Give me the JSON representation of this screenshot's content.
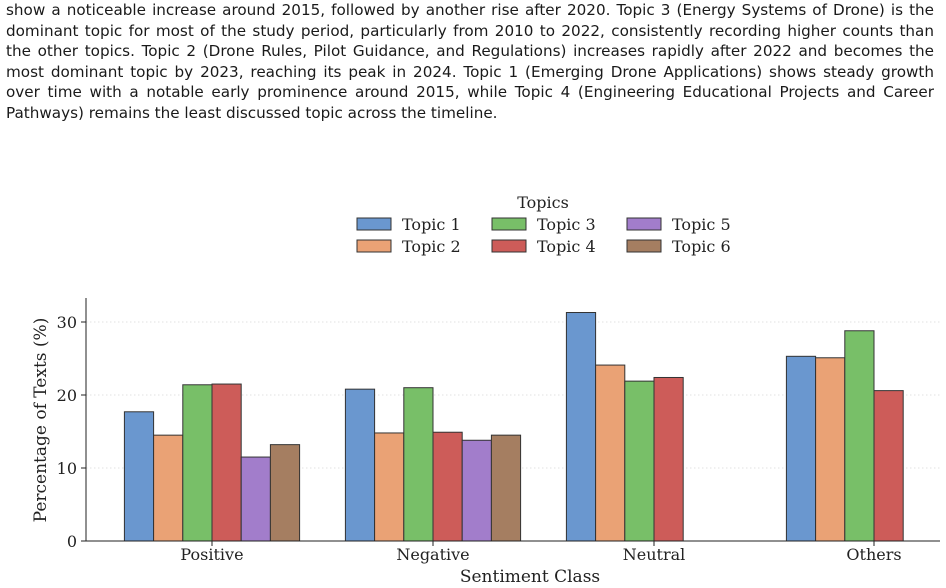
{
  "paragraph": {
    "text": "show a noticeable increase around 2015, followed by another rise after 2020. Topic 3 (Energy Systems of Drone) is the dominant topic for most of the study period, particularly from 2010 to 2022, consistently recording higher counts than the other topics. Topic 2 (Drone Rules, Pilot Guidance, and Regulations) increases rapidly after 2022 and becomes the most dominant topic by 2023, reaching its peak in 2024. Topic 1 (Emerging Drone Applications) shows steady growth over time with a notable early prominence around 2015, while Topic 4 (Engineering Educational Projects and Career Pathways) remains the least discussed topic across the timeline."
  },
  "chart_data": {
    "type": "bar",
    "title": "",
    "xlabel": "Sentiment Class",
    "ylabel": "Percentage of Texts (%)",
    "ylim": [
      0,
      33
    ],
    "yticks": [
      0,
      10,
      20,
      30
    ],
    "grid": "horizontal-dotted",
    "categories": [
      "Positive",
      "Negative",
      "Neutral",
      "Others"
    ],
    "legend": {
      "title": "Topics",
      "placement": "top-center",
      "columns": 3
    },
    "series": [
      {
        "name": "Topic 1",
        "color": "#6a97cf",
        "values": [
          17.7,
          20.8,
          31.3,
          25.3
        ]
      },
      {
        "name": "Topic 2",
        "color": "#eaa275",
        "values": [
          14.5,
          14.8,
          24.1,
          25.1
        ]
      },
      {
        "name": "Topic 3",
        "color": "#78bf68",
        "values": [
          21.4,
          21.0,
          21.9,
          28.8
        ]
      },
      {
        "name": "Topic 4",
        "color": "#cd5c59",
        "values": [
          21.5,
          14.9,
          22.4,
          20.6
        ]
      },
      {
        "name": "Topic 5",
        "color": "#a27dcb",
        "values": [
          11.5,
          13.8,
          null,
          null
        ]
      },
      {
        "name": "Topic 6",
        "color": "#a57e61",
        "values": [
          13.2,
          14.5,
          null,
          null
        ]
      }
    ]
  }
}
